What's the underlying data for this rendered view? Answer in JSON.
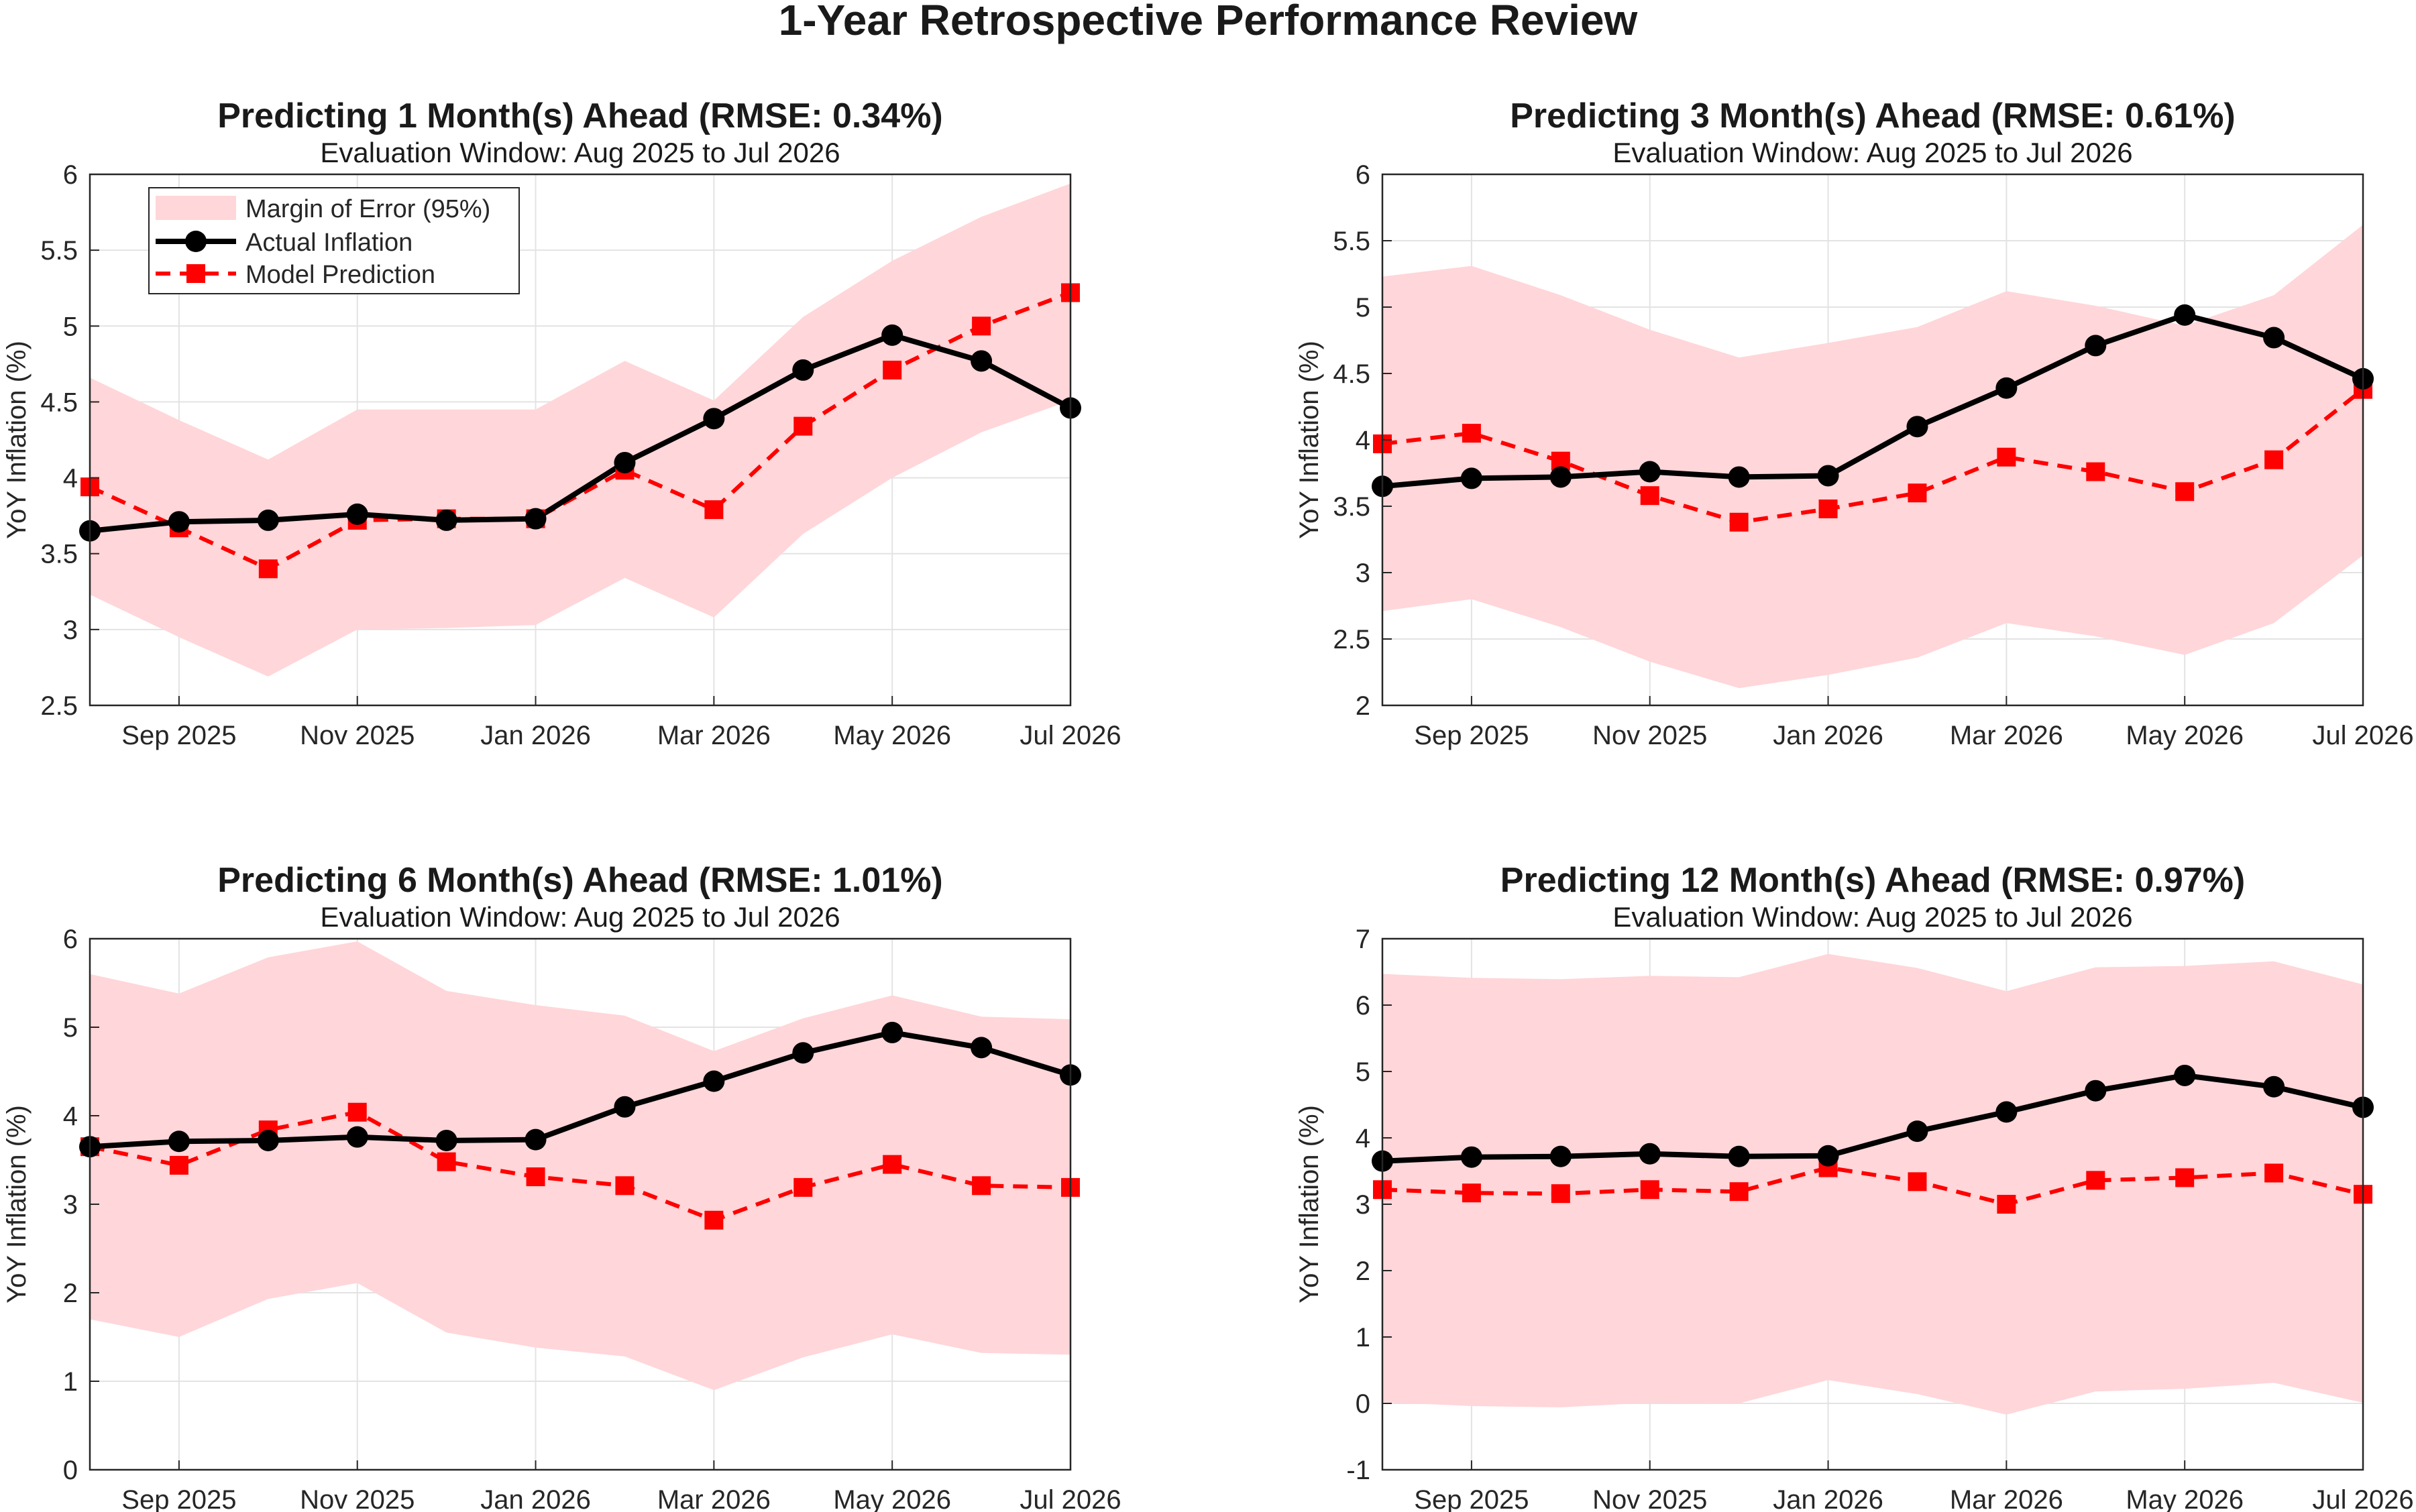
{
  "figure": {
    "title": "1-Year Retrospective Performance Review",
    "ylabel": "YoY Inflation (%)",
    "colors": {
      "actual": "#000000",
      "prediction": "#ff0000",
      "band": "#ffd6d9",
      "grid": "#e3e3e3"
    }
  },
  "legend": {
    "placement": "top-left of first panel",
    "entries": [
      "Margin of Error (95%)",
      "Actual Inflation",
      "Model Prediction"
    ]
  },
  "chart_data": [
    {
      "type": "line",
      "title": "Predicting 1 Month(s) Ahead (RMSE: 0.34%)",
      "subtitle": "Evaluation Window: Aug 2025 to Jul 2026",
      "ylabel": "YoY Inflation (%)",
      "x": [
        "Aug 2025",
        "Sep 2025",
        "Oct 2025",
        "Nov 2025",
        "Dec 2025",
        "Jan 2026",
        "Feb 2026",
        "Mar 2026",
        "Apr 2026",
        "May 2026",
        "Jun 2026",
        "Jul 2026"
      ],
      "x_tick_labels": [
        "Sep 2025",
        "Nov 2025",
        "Jan 2026",
        "Mar 2026",
        "May 2026",
        "Jul 2026"
      ],
      "ylim": [
        2.5,
        6
      ],
      "yticks": [
        2.5,
        3,
        3.5,
        4,
        4.5,
        5,
        5.5,
        6
      ],
      "grid": true,
      "series": [
        {
          "name": "Actual Inflation",
          "values": [
            3.65,
            3.71,
            3.72,
            3.76,
            3.72,
            3.73,
            4.1,
            4.39,
            4.71,
            4.94,
            4.77,
            4.46
          ]
        },
        {
          "name": "Model Prediction",
          "values": [
            3.94,
            3.67,
            3.4,
            3.72,
            3.73,
            3.73,
            4.05,
            3.79,
            4.34,
            4.71,
            5.0,
            5.22
          ]
        },
        {
          "name": "Margin of Error (95%)",
          "lower": [
            3.23,
            2.95,
            2.69,
            3.0,
            3.01,
            3.03,
            3.34,
            3.08,
            3.63,
            4.0,
            4.3,
            4.51
          ],
          "upper": [
            4.66,
            4.38,
            4.12,
            4.45,
            4.45,
            4.45,
            4.77,
            4.51,
            5.06,
            5.43,
            5.72,
            5.94
          ]
        }
      ]
    },
    {
      "type": "line",
      "title": "Predicting 3 Month(s) Ahead (RMSE: 0.61%)",
      "subtitle": "Evaluation Window: Aug 2025 to Jul 2026",
      "ylabel": "YoY Inflation (%)",
      "x": [
        "Aug 2025",
        "Sep 2025",
        "Oct 2025",
        "Nov 2025",
        "Dec 2025",
        "Jan 2026",
        "Feb 2026",
        "Mar 2026",
        "Apr 2026",
        "May 2026",
        "Jun 2026",
        "Jul 2026"
      ],
      "x_tick_labels": [
        "Sep 2025",
        "Nov 2025",
        "Jan 2026",
        "Mar 2026",
        "May 2026",
        "Jul 2026"
      ],
      "ylim": [
        2,
        6
      ],
      "yticks": [
        2,
        2.5,
        3,
        3.5,
        4,
        4.5,
        5,
        5.5,
        6
      ],
      "grid": true,
      "series": [
        {
          "name": "Actual Inflation",
          "values": [
            3.65,
            3.71,
            3.72,
            3.76,
            3.72,
            3.73,
            4.1,
            4.39,
            4.71,
            4.94,
            4.77,
            4.46
          ]
        },
        {
          "name": "Model Prediction",
          "values": [
            3.97,
            4.05,
            3.84,
            3.58,
            3.38,
            3.48,
            3.6,
            3.87,
            3.76,
            3.61,
            3.85,
            4.38
          ]
        },
        {
          "name": "Margin of Error (95%)",
          "lower": [
            2.71,
            2.8,
            2.59,
            2.33,
            2.13,
            2.23,
            2.36,
            2.62,
            2.52,
            2.38,
            2.62,
            3.13
          ],
          "upper": [
            5.23,
            5.31,
            5.09,
            4.83,
            4.62,
            4.73,
            4.85,
            5.12,
            5.01,
            4.86,
            5.09,
            5.62
          ]
        }
      ]
    },
    {
      "type": "line",
      "title": "Predicting 6 Month(s) Ahead (RMSE: 1.01%)",
      "subtitle": "Evaluation Window: Aug 2025 to Jul 2026",
      "ylabel": "YoY Inflation (%)",
      "x": [
        "Aug 2025",
        "Sep 2025",
        "Oct 2025",
        "Nov 2025",
        "Dec 2025",
        "Jan 2026",
        "Feb 2026",
        "Mar 2026",
        "Apr 2026",
        "May 2026",
        "Jun 2026",
        "Jul 2026"
      ],
      "x_tick_labels": [
        "Sep 2025",
        "Nov 2025",
        "Jan 2026",
        "Mar 2026",
        "May 2026",
        "Jul 2026"
      ],
      "ylim": [
        0,
        6
      ],
      "yticks": [
        0,
        1,
        2,
        3,
        4,
        5,
        6
      ],
      "grid": true,
      "series": [
        {
          "name": "Actual Inflation",
          "values": [
            3.65,
            3.71,
            3.72,
            3.76,
            3.72,
            3.73,
            4.1,
            4.39,
            4.71,
            4.94,
            4.77,
            4.46
          ]
        },
        {
          "name": "Model Prediction",
          "values": [
            3.65,
            3.44,
            3.84,
            4.04,
            3.48,
            3.31,
            3.21,
            2.82,
            3.19,
            3.45,
            3.21,
            3.19
          ]
        },
        {
          "name": "Margin of Error (95%)",
          "lower": [
            1.7,
            1.5,
            1.93,
            2.11,
            1.55,
            1.38,
            1.28,
            0.9,
            1.27,
            1.53,
            1.32,
            1.3
          ],
          "upper": [
            5.6,
            5.38,
            5.79,
            5.97,
            5.41,
            5.25,
            5.13,
            4.73,
            5.1,
            5.36,
            5.12,
            5.09
          ]
        }
      ]
    },
    {
      "type": "line",
      "title": "Predicting 12 Month(s) Ahead (RMSE: 0.97%)",
      "subtitle": "Evaluation Window: Aug 2025 to Jul 2026",
      "ylabel": "YoY Inflation (%)",
      "x": [
        "Aug 2025",
        "Sep 2025",
        "Oct 2025",
        "Nov 2025",
        "Dec 2025",
        "Jan 2026",
        "Feb 2026",
        "Mar 2026",
        "Apr 2026",
        "May 2026",
        "Jun 2026",
        "Jul 2026"
      ],
      "x_tick_labels": [
        "Sep 2025",
        "Nov 2025",
        "Jan 2026",
        "Mar 2026",
        "May 2026",
        "Jul 2026"
      ],
      "ylim": [
        -1,
        7
      ],
      "yticks": [
        -1,
        0,
        1,
        2,
        3,
        4,
        5,
        6,
        7
      ],
      "grid": true,
      "series": [
        {
          "name": "Actual Inflation",
          "values": [
            3.65,
            3.71,
            3.72,
            3.76,
            3.72,
            3.73,
            4.1,
            4.39,
            4.71,
            4.94,
            4.77,
            4.46
          ]
        },
        {
          "name": "Model Prediction",
          "values": [
            3.22,
            3.17,
            3.16,
            3.22,
            3.19,
            3.55,
            3.34,
            3.0,
            3.36,
            3.4,
            3.47,
            3.15
          ]
        },
        {
          "name": "Margin of Error (95%)",
          "lower": [
            0.02,
            -0.04,
            -0.06,
            0.01,
            0.0,
            0.35,
            0.14,
            -0.17,
            0.18,
            0.22,
            0.31,
            0.01
          ],
          "upper": [
            6.47,
            6.41,
            6.39,
            6.44,
            6.42,
            6.77,
            6.56,
            6.21,
            6.57,
            6.59,
            6.66,
            6.31
          ]
        }
      ]
    }
  ]
}
